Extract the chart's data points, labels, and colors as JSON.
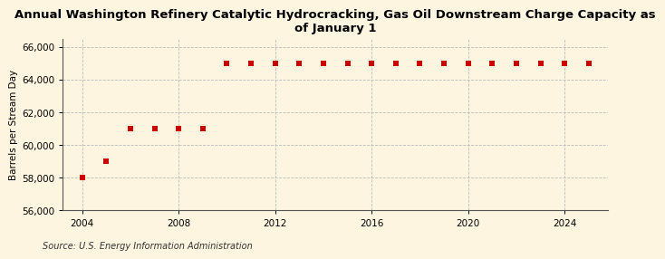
{
  "title": "Annual Washington Refinery Catalytic Hydrocracking, Gas Oil Downstream Charge Capacity as\nof January 1",
  "ylabel": "Barrels per Stream Day",
  "xlabel": "",
  "source": "Source: U.S. Energy Information Administration",
  "background_color": "#fdf5e0",
  "plot_background_color": "#fdf5e0",
  "years": [
    2004,
    2005,
    2006,
    2007,
    2008,
    2009,
    2010,
    2011,
    2012,
    2013,
    2014,
    2015,
    2016,
    2017,
    2018,
    2019,
    2020,
    2021,
    2022,
    2023,
    2024,
    2025
  ],
  "values": [
    58000,
    59000,
    61000,
    61000,
    61000,
    61000,
    65000,
    65000,
    65000,
    65000,
    65000,
    65000,
    65000,
    65000,
    65000,
    65000,
    65000,
    65000,
    65000,
    65000,
    65000,
    65000
  ],
  "marker_color": "#cc0000",
  "marker_size": 4,
  "ylim": [
    56000,
    66500
  ],
  "yticks": [
    56000,
    58000,
    60000,
    62000,
    64000,
    66000
  ],
  "xticks": [
    2004,
    2008,
    2012,
    2016,
    2020,
    2024
  ],
  "xlim": [
    2003.2,
    2025.8
  ],
  "grid_color": "#bbbbbb",
  "title_fontsize": 9.5,
  "axis_fontsize": 7.5,
  "tick_fontsize": 7.5,
  "source_fontsize": 7
}
